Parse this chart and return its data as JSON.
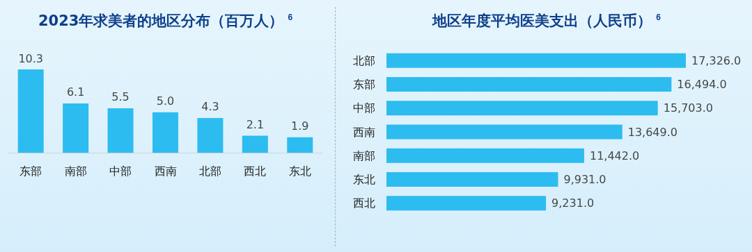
{
  "chart_data": [
    {
      "type": "bar",
      "title": "2023年求美者的地区分布（百万人）$^{6}$",
      "categories": [
        "东部",
        "南部",
        "中部",
        "西南",
        "北部",
        "西北",
        "东北"
      ],
      "values": [
        10.3,
        6.1,
        5.5,
        5.0,
        4.3,
        2.1,
        1.9
      ],
      "value_labels": [
        "10.3",
        "6.1",
        "5.5",
        "5.0",
        "4.3",
        "2.1",
        "1.9"
      ],
      "color": "#1ab6ee"
    },
    {
      "type": "bar",
      "title": "地区年度平均医美支出（人民币）$^{6}$",
      "orientation": "horizontal",
      "categories": [
        "北部",
        "东部",
        "中部",
        "西南",
        "南部",
        "东北",
        "西北"
      ],
      "values": [
        17326.0,
        16494.0,
        15703.0,
        13649.0,
        11442.0,
        9931.0,
        9231.0
      ],
      "value_labels": [
        "17,326.0",
        "16,494.0",
        "15,703.0",
        "13,649.0",
        "11,442.0",
        "9,931.0",
        "9,231.0"
      ],
      "color": "#1ab6ee"
    }
  ]
}
